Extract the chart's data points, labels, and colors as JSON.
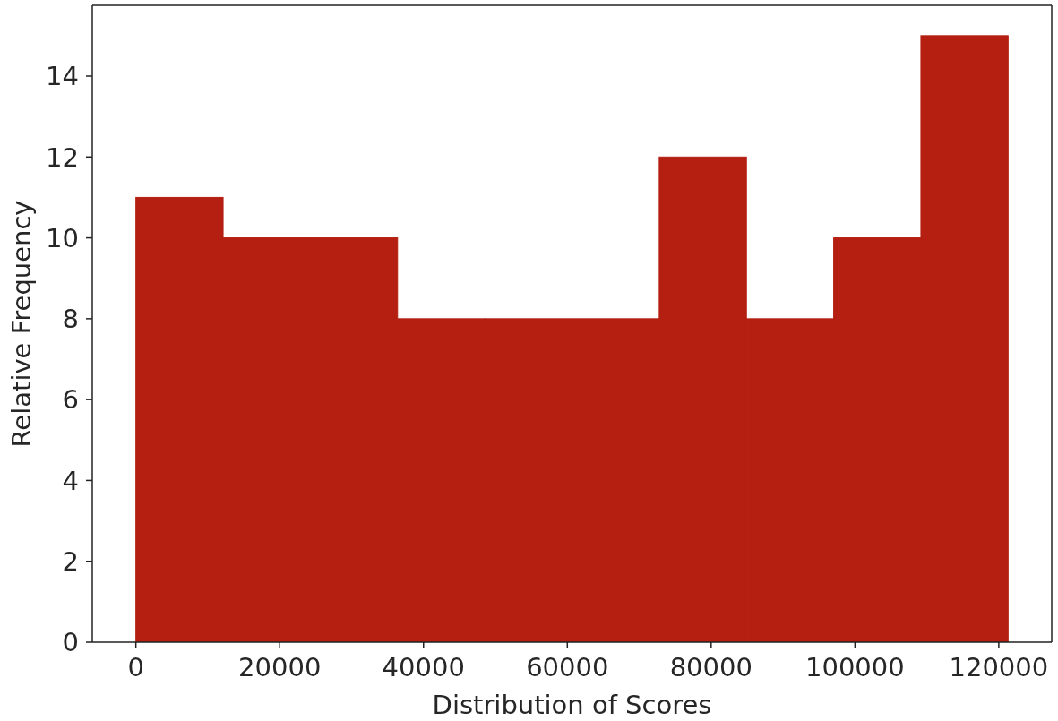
{
  "chart_data": {
    "type": "histogram",
    "xlabel": "Distribution of Scores",
    "ylabel": "Relative Frequency",
    "bins": [
      0,
      12130,
      24260,
      36390,
      48520,
      60650,
      72780,
      84910,
      97040,
      109170,
      121300
    ],
    "values": [
      11,
      10,
      10,
      8,
      8,
      8,
      12,
      8,
      10,
      15
    ],
    "color": "#b41f12",
    "xlim": [
      -6065,
      127365
    ],
    "ylim": [
      0,
      15.75
    ],
    "xticks": [
      0,
      20000,
      40000,
      60000,
      80000,
      100000,
      120000
    ],
    "yticks": [
      0,
      2,
      4,
      6,
      8,
      10,
      12,
      14
    ]
  }
}
